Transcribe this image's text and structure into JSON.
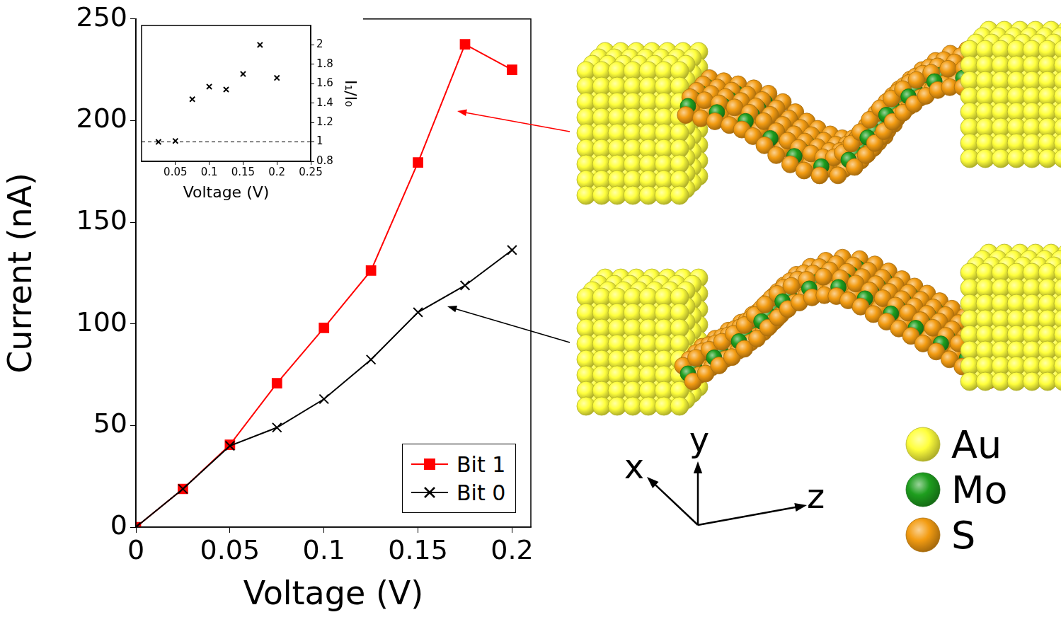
{
  "chart_data": [
    {
      "type": "line",
      "x_label": "Voltage (V)",
      "y_label": "Current (nA)",
      "x": [
        0,
        0.025,
        0.05,
        0.075,
        0.1,
        0.125,
        0.15,
        0.175,
        0.2
      ],
      "series": [
        {
          "name": "Bit 1",
          "color": "#ff0000",
          "marker": "square",
          "values": [
            0,
            18.8,
            40.5,
            70.8,
            98,
            126.2,
            179.4,
            237.5,
            225
          ]
        },
        {
          "name": "Bit 0",
          "color": "#000000",
          "marker": "cross",
          "values": [
            0,
            18.8,
            40,
            49,
            63,
            82.4,
            105.7,
            118.9,
            136.3
          ]
        }
      ],
      "xlim": [
        0,
        0.21
      ],
      "xticks": [
        0,
        0.05,
        0.1,
        0.15,
        0.2
      ],
      "ylim": [
        0,
        250
      ],
      "yticks": [
        0,
        50,
        100,
        150,
        200,
        250
      ],
      "legend": "lower right",
      "grid": false
    },
    {
      "type": "scatter",
      "x_label": "Voltage (V)",
      "y_label": "I₁/I₀",
      "x": [
        0.025,
        0.05,
        0.075,
        0.1,
        0.125,
        0.15,
        0.175,
        0.2
      ],
      "values": [
        1.0,
        1.01,
        1.44,
        1.57,
        1.54,
        1.7,
        2.0,
        1.66
      ],
      "color": "#000000",
      "marker": "cross",
      "xlim": [
        0,
        0.25
      ],
      "xticks": [
        0.05,
        0.1,
        0.15,
        0.2,
        0.25
      ],
      "ylim": [
        0.8,
        2.2
      ],
      "yticks": [
        0.8,
        1,
        1.2,
        1.4,
        1.6,
        1.8,
        2
      ],
      "reference_line": 1,
      "grid": false
    }
  ],
  "diagram": {
    "axes": [
      "x",
      "y",
      "z"
    ],
    "elements": [
      {
        "label": "Au",
        "color": "#ffff3c"
      },
      {
        "label": "Mo",
        "color": "#1e9e1e"
      },
      {
        "label": "S",
        "color": "#f39c12"
      }
    ]
  }
}
